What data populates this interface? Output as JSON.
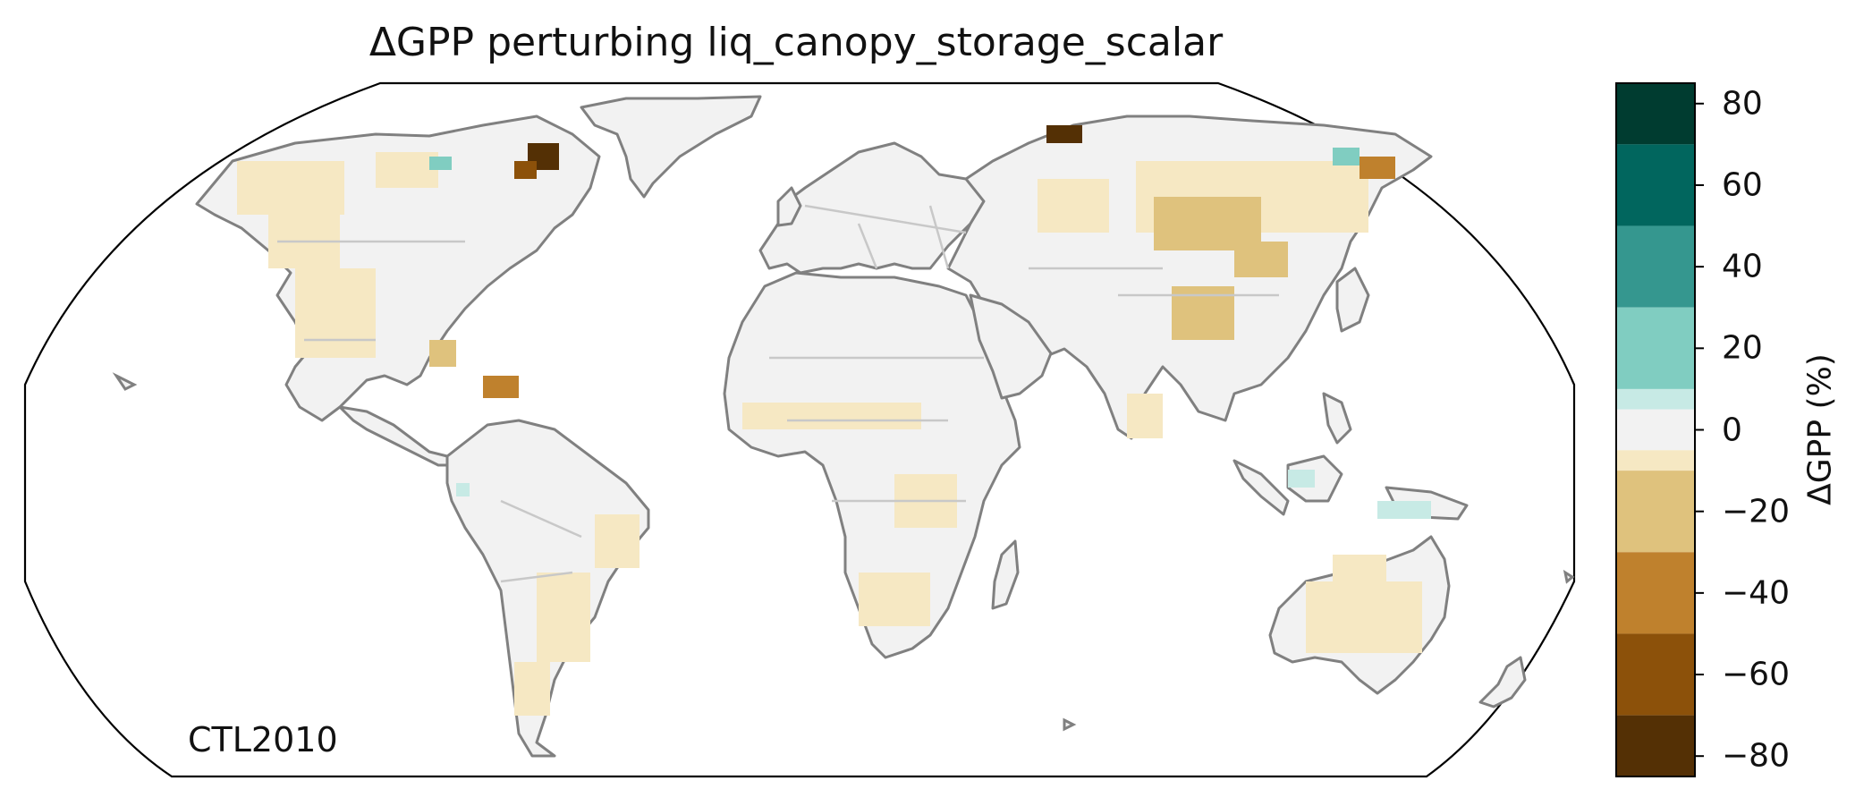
{
  "title": "ΔGPP perturbing liq_canopy_storage_scalar",
  "run_label": "CTL2010",
  "colorbar": {
    "label": "ΔGPP (%)",
    "ticks": [
      {
        "value": 80,
        "label": "80"
      },
      {
        "value": 60,
        "label": "60"
      },
      {
        "value": 40,
        "label": "40"
      },
      {
        "value": 20,
        "label": "20"
      },
      {
        "value": 0,
        "label": "0"
      },
      {
        "value": -20,
        "label": "−20"
      },
      {
        "value": -40,
        "label": "−40"
      },
      {
        "value": -60,
        "label": "−60"
      },
      {
        "value": -80,
        "label": "−80"
      }
    ],
    "range": [
      -85,
      85
    ],
    "bins": [
      {
        "from": 70,
        "to": 85,
        "color": "#003c30"
      },
      {
        "from": 50,
        "to": 70,
        "color": "#01665e"
      },
      {
        "from": 30,
        "to": 50,
        "color": "#35978f"
      },
      {
        "from": 10,
        "to": 30,
        "color": "#80cdc1"
      },
      {
        "from": 5,
        "to": 10,
        "color": "#c7eae5"
      },
      {
        "from": -5,
        "to": 5,
        "color": "#f2f2f2"
      },
      {
        "from": -10,
        "to": -5,
        "color": "#f6e8c3"
      },
      {
        "from": -30,
        "to": -10,
        "color": "#dfc27d"
      },
      {
        "from": -50,
        "to": -30,
        "color": "#bf812d"
      },
      {
        "from": -70,
        "to": -50,
        "color": "#8c510a"
      },
      {
        "from": -85,
        "to": -70,
        "color": "#543005"
      }
    ]
  },
  "colors": {
    "land_neutral": "#f2f2f2",
    "coastline": "#808080",
    "borders": "#c8c8c8",
    "map_outline": "#000000"
  }
}
